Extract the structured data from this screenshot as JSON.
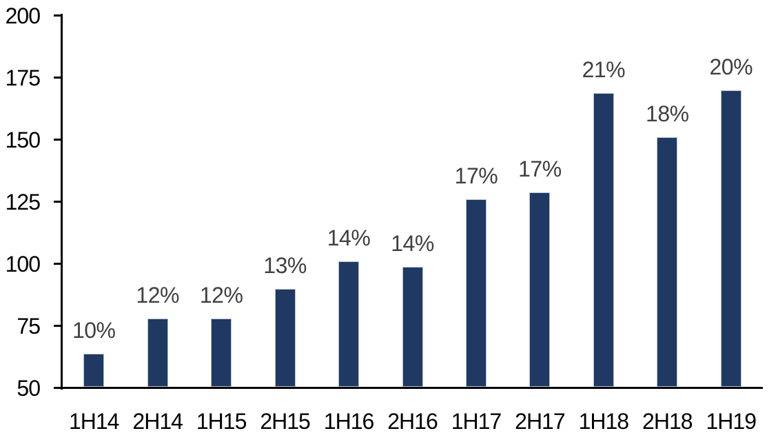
{
  "chart_data": {
    "type": "bar",
    "title": "",
    "categories": [
      "1H14",
      "2H14",
      "1H15",
      "2H15",
      "1H16",
      "2H16",
      "1H17",
      "2H17",
      "1H18",
      "2H18",
      "1H19"
    ],
    "values": [
      64,
      78,
      78,
      90,
      101,
      99,
      126,
      129,
      169,
      151,
      170
    ],
    "bar_labels": [
      "10%",
      "12%",
      "12%",
      "13%",
      "14%",
      "14%",
      "17%",
      "17%",
      "21%",
      "18%",
      "20%"
    ],
    "y_ticks": [
      50,
      75,
      100,
      125,
      150,
      175,
      200
    ],
    "ylim": [
      50,
      200
    ],
    "xlabel": "",
    "ylabel": "",
    "grid": false,
    "legend": "none",
    "colors": {
      "bar_fill": "#1f3962",
      "bar_border": "#b7c1d6",
      "data_label": "#404040",
      "axis_text": "#000000",
      "axis_line": "#000000",
      "background": "#ffffff"
    }
  }
}
